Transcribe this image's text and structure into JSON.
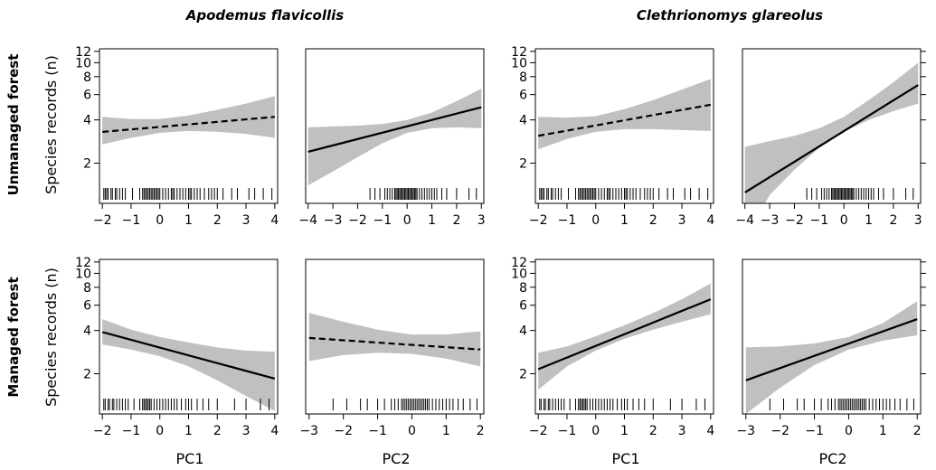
{
  "figure": {
    "species": [
      "Apodemus flavicollis",
      "Clethrionomys glareolus"
    ],
    "rows": [
      "Unmanaged forest",
      "Managed forest"
    ],
    "ylabel": "Species records (n)",
    "x_axis_titles": [
      "PC1",
      "PC2",
      "PC1",
      "PC2"
    ]
  },
  "chart_data": [
    {
      "type": "line",
      "row": "Unmanaged forest",
      "species": "Apodemus flavicollis",
      "xlabel": "PC1",
      "x_ticks": [
        -2,
        -1,
        0,
        1,
        2,
        3,
        4
      ],
      "x_tick_labels": [
        "−2",
        "−1",
        "0",
        "1",
        "2",
        "3",
        "4"
      ],
      "xlim": [
        -2.1,
        4.1
      ],
      "y_scale": "log",
      "ylim": [
        1.05,
        12.5
      ],
      "y_ticks": [
        2,
        4,
        6,
        8,
        10,
        12
      ],
      "y_tick_labels": [
        "2",
        "4",
        "6",
        "8",
        "10",
        "12"
      ],
      "line_style": "dashed",
      "fit": {
        "x": [
          -2,
          4
        ],
        "y": [
          3.3,
          4.2
        ]
      },
      "ci_lower": {
        "x": [
          -2,
          -1,
          0,
          1,
          2,
          3,
          4
        ],
        "y": [
          2.7,
          3.0,
          3.25,
          3.35,
          3.3,
          3.2,
          3.0
        ]
      },
      "ci_upper": {
        "x": [
          -2,
          -1,
          0,
          1,
          2,
          3,
          4
        ],
        "y": [
          4.2,
          4.05,
          4.05,
          4.3,
          4.7,
          5.2,
          5.85
        ]
      },
      "rug": [
        -1.95,
        -1.9,
        -1.85,
        -1.8,
        -1.7,
        -1.65,
        -1.55,
        -1.5,
        -1.4,
        -1.3,
        -1.2,
        -0.95,
        -0.7,
        -0.6,
        -0.55,
        -0.5,
        -0.45,
        -0.4,
        -0.35,
        -0.3,
        -0.25,
        -0.2,
        -0.15,
        -0.1,
        -0.05,
        0.0,
        0.1,
        0.2,
        0.3,
        0.4,
        0.45,
        0.5,
        0.6,
        0.7,
        0.8,
        0.9,
        1.0,
        1.05,
        1.1,
        1.2,
        1.3,
        1.4,
        1.55,
        1.7,
        1.8,
        1.9,
        2.0,
        2.2,
        2.5,
        2.7,
        3.1,
        3.3,
        3.6,
        3.9
      ]
    },
    {
      "type": "line",
      "row": "Unmanaged forest",
      "species": "Apodemus flavicollis",
      "xlabel": "PC2",
      "x_ticks": [
        -4,
        -3,
        -2,
        -1,
        0,
        1,
        2,
        3
      ],
      "x_tick_labels": [
        "−4",
        "−3",
        "−2",
        "−1",
        "0",
        "1",
        "2",
        "3"
      ],
      "xlim": [
        -4.1,
        3.1
      ],
      "y_scale": "log",
      "ylim": [
        1.05,
        12.5
      ],
      "line_style": "solid",
      "fit": {
        "x": [
          -4,
          3
        ],
        "y": [
          2.4,
          4.9
        ]
      },
      "ci_lower": {
        "x": [
          -4,
          -3,
          -2,
          -1,
          0,
          1,
          2,
          3
        ],
        "y": [
          1.4,
          1.75,
          2.2,
          2.75,
          3.25,
          3.5,
          3.55,
          3.5
        ]
      },
      "ci_upper": {
        "x": [
          -4,
          -3,
          -2,
          -1,
          0,
          1,
          2,
          3
        ],
        "y": [
          3.55,
          3.6,
          3.65,
          3.75,
          4.0,
          4.5,
          5.4,
          6.6
        ]
      },
      "rug": [
        -1.5,
        -1.3,
        -1.1,
        -0.9,
        -0.8,
        -0.7,
        -0.6,
        -0.5,
        -0.45,
        -0.4,
        -0.35,
        -0.3,
        -0.25,
        -0.2,
        -0.15,
        -0.1,
        -0.05,
        0.0,
        0.05,
        0.1,
        0.15,
        0.2,
        0.25,
        0.3,
        0.35,
        0.4,
        0.5,
        0.6,
        0.7,
        0.8,
        0.9,
        1.0,
        1.1,
        1.2,
        1.4,
        1.6,
        2.0,
        2.5,
        2.8
      ]
    },
    {
      "type": "line",
      "row": "Unmanaged forest",
      "species": "Clethrionomys glareolus",
      "xlabel": "PC1",
      "x_ticks": [
        -2,
        -1,
        0,
        1,
        2,
        3,
        4
      ],
      "x_tick_labels": [
        "−2",
        "−1",
        "0",
        "1",
        "2",
        "3",
        "4"
      ],
      "xlim": [
        -2.1,
        4.1
      ],
      "y_scale": "log",
      "ylim": [
        1.05,
        12.5
      ],
      "line_style": "dashed",
      "fit": {
        "x": [
          -2,
          4
        ],
        "y": [
          3.1,
          5.1
        ]
      },
      "ci_lower": {
        "x": [
          -2,
          -1,
          0,
          1,
          2,
          3,
          4
        ],
        "y": [
          2.5,
          2.95,
          3.3,
          3.45,
          3.45,
          3.4,
          3.35
        ]
      },
      "ci_upper": {
        "x": [
          -2,
          -1,
          0,
          1,
          2,
          3,
          4
        ],
        "y": [
          4.2,
          4.15,
          4.25,
          4.75,
          5.5,
          6.5,
          7.7
        ]
      },
      "rug": [
        -1.95,
        -1.9,
        -1.85,
        -1.8,
        -1.7,
        -1.65,
        -1.55,
        -1.5,
        -1.4,
        -1.3,
        -1.2,
        -0.95,
        -0.7,
        -0.6,
        -0.55,
        -0.5,
        -0.45,
        -0.4,
        -0.35,
        -0.3,
        -0.25,
        -0.2,
        -0.15,
        -0.1,
        -0.05,
        0.0,
        0.1,
        0.2,
        0.3,
        0.4,
        0.45,
        0.5,
        0.6,
        0.7,
        0.8,
        0.9,
        1.0,
        1.05,
        1.1,
        1.2,
        1.3,
        1.4,
        1.55,
        1.7,
        1.8,
        1.9,
        2.0,
        2.2,
        2.5,
        2.7,
        3.1,
        3.3,
        3.6,
        3.9
      ]
    },
    {
      "type": "line",
      "row": "Unmanaged forest",
      "species": "Clethrionomys glareolus",
      "xlabel": "PC2",
      "x_ticks": [
        -4,
        -3,
        -2,
        -1,
        0,
        1,
        2,
        3
      ],
      "x_tick_labels": [
        "−4",
        "−3",
        "−2",
        "−1",
        "0",
        "1",
        "2",
        "3"
      ],
      "xlim": [
        -4.1,
        3.1
      ],
      "y_scale": "log",
      "ylim": [
        1.05,
        12.5
      ],
      "line_style": "solid",
      "fit": {
        "x": [
          -4,
          3
        ],
        "y": [
          1.25,
          7.0
        ]
      },
      "ci_lower": {
        "x": [
          -4,
          -3,
          -2,
          -1,
          0,
          1,
          2,
          3
        ],
        "y": [
          0.6,
          1.2,
          1.8,
          2.55,
          3.3,
          4.0,
          4.6,
          5.2
        ]
      },
      "ci_upper": {
        "x": [
          -4,
          -3,
          -2,
          -1,
          0,
          1,
          2,
          3
        ],
        "y": [
          2.6,
          2.85,
          3.1,
          3.5,
          4.2,
          5.5,
          7.3,
          10.0
        ]
      },
      "rug": [
        -1.5,
        -1.3,
        -1.1,
        -0.9,
        -0.8,
        -0.7,
        -0.6,
        -0.5,
        -0.45,
        -0.4,
        -0.35,
        -0.3,
        -0.25,
        -0.2,
        -0.15,
        -0.1,
        -0.05,
        0.0,
        0.05,
        0.1,
        0.15,
        0.2,
        0.25,
        0.3,
        0.35,
        0.4,
        0.5,
        0.6,
        0.7,
        0.8,
        0.9,
        1.0,
        1.1,
        1.2,
        1.4,
        1.6,
        2.0,
        2.5,
        2.8
      ]
    },
    {
      "type": "line",
      "row": "Managed forest",
      "species": "Apodemus flavicollis",
      "xlabel": "PC1",
      "x_ticks": [
        -2,
        -1,
        0,
        1,
        2,
        3,
        4
      ],
      "x_tick_labels": [
        "−2",
        "−1",
        "0",
        "1",
        "2",
        "3",
        "4"
      ],
      "xlim": [
        -2.1,
        4.1
      ],
      "y_scale": "log",
      "ylim": [
        1.05,
        12.5
      ],
      "line_style": "solid",
      "fit": {
        "x": [
          -2,
          4
        ],
        "y": [
          3.9,
          1.85
        ]
      },
      "ci_lower": {
        "x": [
          -2,
          -1,
          0,
          1,
          2,
          3,
          4
        ],
        "y": [
          3.2,
          2.95,
          2.65,
          2.25,
          1.8,
          1.4,
          1.1
        ]
      },
      "ci_upper": {
        "x": [
          -2,
          -1,
          0,
          1,
          2,
          3,
          4
        ],
        "y": [
          4.8,
          4.05,
          3.6,
          3.3,
          3.05,
          2.9,
          2.85
        ]
      },
      "rug": [
        -1.95,
        -1.9,
        -1.8,
        -1.75,
        -1.65,
        -1.6,
        -1.5,
        -1.4,
        -1.3,
        -1.2,
        -1.1,
        -0.9,
        -0.7,
        -0.6,
        -0.55,
        -0.5,
        -0.45,
        -0.4,
        -0.35,
        -0.3,
        -0.2,
        -0.1,
        0.0,
        0.1,
        0.2,
        0.3,
        0.4,
        0.5,
        0.6,
        0.75,
        0.9,
        1.0,
        1.1,
        1.3,
        1.5,
        1.7,
        2.0,
        2.6,
        3.0,
        3.5,
        3.8
      ]
    },
    {
      "type": "line",
      "row": "Managed forest",
      "species": "Apodemus flavicollis",
      "xlabel": "PC2",
      "x_ticks": [
        -3,
        -2,
        -1,
        0,
        1,
        2
      ],
      "x_tick_labels": [
        "−3",
        "−2",
        "−1",
        "0",
        "1",
        "2"
      ],
      "xlim": [
        -3.1,
        2.1
      ],
      "y_scale": "log",
      "ylim": [
        1.05,
        12.5
      ],
      "line_style": "dashed",
      "fit": {
        "x": [
          -3,
          2
        ],
        "y": [
          3.55,
          2.95
        ]
      },
      "ci_lower": {
        "x": [
          -3,
          -2,
          -1,
          0,
          1,
          2
        ],
        "y": [
          2.45,
          2.7,
          2.8,
          2.75,
          2.55,
          2.25
        ]
      },
      "ci_upper": {
        "x": [
          -3,
          -2,
          -1,
          0,
          1,
          2
        ],
        "y": [
          5.3,
          4.6,
          4.05,
          3.75,
          3.75,
          3.95
        ]
      },
      "rug": [
        -2.3,
        -1.9,
        -1.5,
        -1.3,
        -1.0,
        -0.8,
        -0.6,
        -0.5,
        -0.4,
        -0.3,
        -0.25,
        -0.2,
        -0.15,
        -0.1,
        -0.05,
        0.0,
        0.05,
        0.1,
        0.15,
        0.2,
        0.25,
        0.3,
        0.35,
        0.4,
        0.45,
        0.5,
        0.6,
        0.7,
        0.8,
        0.9,
        1.0,
        1.1,
        1.2,
        1.35,
        1.5,
        1.7,
        1.9
      ]
    },
    {
      "type": "line",
      "row": "Managed forest",
      "species": "Clethrionomys glareolus",
      "xlabel": "PC1",
      "x_ticks": [
        -2,
        -1,
        0,
        1,
        2,
        3,
        4
      ],
      "x_tick_labels": [
        "−2",
        "−1",
        "0",
        "1",
        "2",
        "3",
        "4"
      ],
      "xlim": [
        -2.1,
        4.1
      ],
      "y_scale": "log",
      "ylim": [
        1.05,
        12.5
      ],
      "line_style": "solid",
      "fit": {
        "x": [
          -2,
          4
        ],
        "y": [
          2.15,
          6.6
        ]
      },
      "ci_lower": {
        "x": [
          -2,
          -1,
          0,
          1,
          2,
          3,
          4
        ],
        "y": [
          1.55,
          2.25,
          2.9,
          3.5,
          4.05,
          4.6,
          5.2
        ]
      },
      "ci_upper": {
        "x": [
          -2,
          -1,
          0,
          1,
          2,
          3,
          4
        ],
        "y": [
          2.8,
          3.1,
          3.65,
          4.35,
          5.3,
          6.6,
          8.5
        ]
      },
      "rug": [
        -1.95,
        -1.9,
        -1.8,
        -1.75,
        -1.65,
        -1.6,
        -1.5,
        -1.4,
        -1.3,
        -1.2,
        -1.1,
        -0.9,
        -0.7,
        -0.6,
        -0.55,
        -0.5,
        -0.45,
        -0.4,
        -0.35,
        -0.3,
        -0.2,
        -0.1,
        0.0,
        0.1,
        0.2,
        0.3,
        0.4,
        0.5,
        0.6,
        0.75,
        0.9,
        1.0,
        1.1,
        1.3,
        1.5,
        1.7,
        2.0,
        2.6,
        3.0,
        3.5,
        3.8
      ]
    },
    {
      "type": "line",
      "row": "Managed forest",
      "species": "Clethrionomys glareolus",
      "xlabel": "PC2",
      "x_ticks": [
        -3,
        -2,
        -1,
        0,
        1,
        2
      ],
      "x_tick_labels": [
        "−3",
        "−2",
        "−1",
        "0",
        "1",
        "2"
      ],
      "xlim": [
        -3.1,
        2.1
      ],
      "y_scale": "log",
      "ylim": [
        1.05,
        12.5
      ],
      "line_style": "solid",
      "fit": {
        "x": [
          -3,
          2
        ],
        "y": [
          1.8,
          4.8
        ]
      },
      "ci_lower": {
        "x": [
          -3,
          -2,
          -1,
          0,
          1,
          2
        ],
        "y": [
          1.05,
          1.6,
          2.3,
          2.95,
          3.4,
          3.7
        ]
      },
      "ci_upper": {
        "x": [
          -3,
          -2,
          -1,
          0,
          1,
          2
        ],
        "y": [
          3.05,
          3.1,
          3.25,
          3.6,
          4.5,
          6.4
        ]
      },
      "rug": [
        -2.3,
        -1.9,
        -1.5,
        -1.3,
        -1.0,
        -0.8,
        -0.6,
        -0.5,
        -0.4,
        -0.3,
        -0.25,
        -0.2,
        -0.15,
        -0.1,
        -0.05,
        0.0,
        0.05,
        0.1,
        0.15,
        0.2,
        0.25,
        0.3,
        0.35,
        0.4,
        0.45,
        0.5,
        0.6,
        0.7,
        0.8,
        0.9,
        1.0,
        1.1,
        1.2,
        1.35,
        1.5,
        1.7,
        1.9
      ]
    }
  ]
}
